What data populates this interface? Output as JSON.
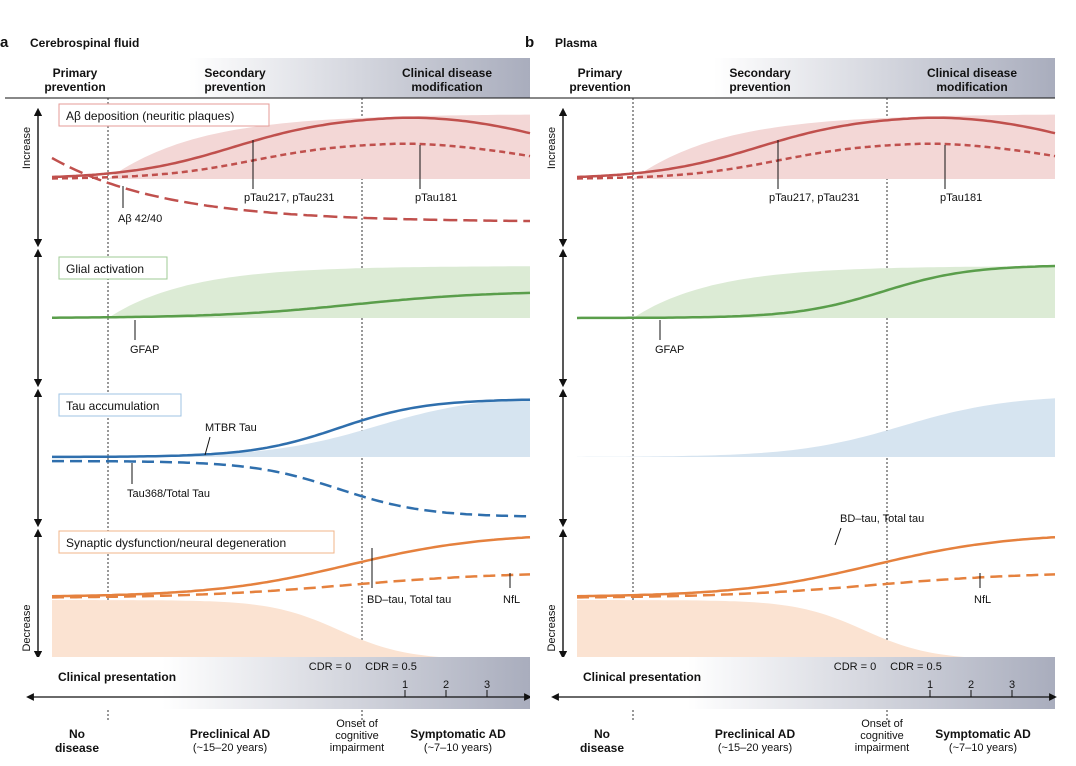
{
  "figure": {
    "colors": {
      "red": "#c0504d",
      "red_fill": "#f3d7d6",
      "green": "#5a9e4b",
      "green_fill": "#dcebd5",
      "blue": "#2f6fad",
      "blue_fill": "#d6e4f0",
      "orange": "#e5813e",
      "orange_fill": "#fbe3d2",
      "header_gradient_end": "#a9adbd",
      "module_box_red": "#e49b97",
      "module_box_green": "#9fcb95",
      "module_box_blue": "#9fc3e3",
      "module_box_orange": "#f1b48a"
    },
    "panels": [
      {
        "letter": "a",
        "title": "Cerebrospinal fluid",
        "header": {
          "primary": [
            "Primary",
            "prevention"
          ],
          "secondary": [
            "Secondary",
            "prevention"
          ],
          "clinical": [
            "Clinical disease",
            "modification"
          ]
        },
        "axis": {
          "increase": "Increase",
          "decrease": "Decrease"
        },
        "modules": {
          "amyloid": "Aβ deposition (neuritic plaques)",
          "glial": "Glial activation",
          "tau": "Tau accumulation",
          "synaptic": "Synaptic dysfunction/neural degeneration"
        },
        "markers": {
          "ptau217": "pTau217, pTau231",
          "ptau181": "pTau181",
          "ab4240": "Aβ 42/40",
          "gfap": "GFAP",
          "mtbr": "MTBR Tau",
          "tau368": "Tau368/Total Tau",
          "bdtau": "BD–tau, Total tau",
          "nfl": "NfL"
        },
        "bottom": {
          "clinical_presentation": "Clinical presentation",
          "cdr0": "CDR = 0",
          "cdr05": "CDR = 0.5",
          "ticks": [
            "1",
            "2",
            "3"
          ],
          "no_disease": [
            "No",
            "disease"
          ],
          "preclinical": [
            "Preclinical AD",
            "(~15–20 years)"
          ],
          "onset": [
            "Onset of",
            "cognitive",
            "impairment"
          ],
          "symptomatic": [
            "Symptomatic AD",
            "(~7–10 years)"
          ]
        }
      },
      {
        "letter": "b",
        "title": "Plasma",
        "header": {
          "primary": [
            "Primary",
            "prevention"
          ],
          "secondary": [
            "Secondary",
            "prevention"
          ],
          "clinical": [
            "Clinical disease",
            "modification"
          ]
        },
        "axis": {
          "increase": "Increase",
          "decrease": "Decrease"
        },
        "markers": {
          "ptau217": "pTau217, pTau231",
          "ptau181": "pTau181",
          "gfap": "GFAP",
          "bdtau": "BD–tau, Total tau",
          "nfl": "NfL"
        },
        "bottom": {
          "clinical_presentation": "Clinical presentation",
          "cdr0": "CDR = 0",
          "cdr05": "CDR = 0.5",
          "ticks": [
            "1",
            "2",
            "3"
          ],
          "no_disease": [
            "No",
            "disease"
          ],
          "preclinical": [
            "Preclinical AD",
            "(~15–20 years)"
          ],
          "onset": [
            "Onset of",
            "cognitive",
            "impairment"
          ],
          "symptomatic": [
            "Symptomatic AD",
            "(~7–10 years)"
          ]
        }
      }
    ]
  }
}
